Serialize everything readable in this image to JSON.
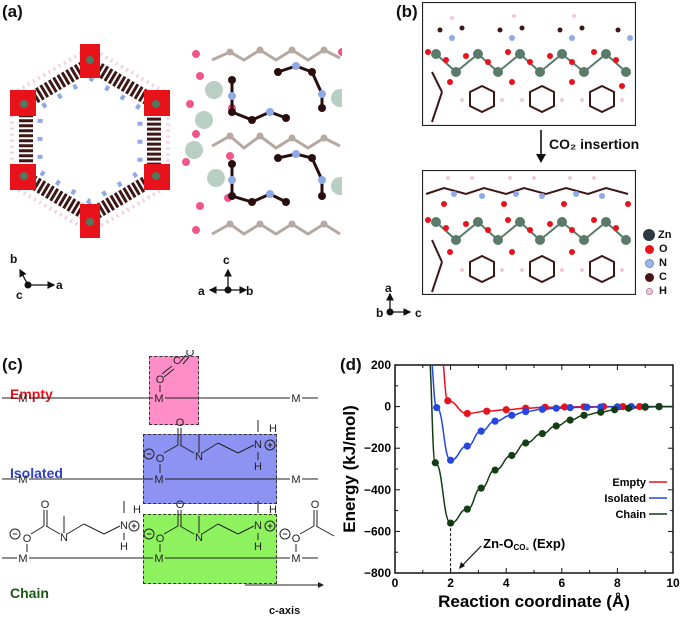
{
  "panels": {
    "a": {
      "label": "(a)",
      "left_axes": {
        "b": "b",
        "c": "c",
        "a": "a"
      },
      "right_axes": {
        "c": "c",
        "a": "a",
        "b": "b"
      }
    },
    "b": {
      "label": "(b)",
      "arrow_label": "CO₂ insertion",
      "axes": {
        "a": "a",
        "b": "b",
        "c": "c"
      },
      "legend": [
        {
          "label": "Zn",
          "color": "#2b3a3f"
        },
        {
          "label": "O",
          "color": "#e8121b"
        },
        {
          "label": "N",
          "color": "#9fb7e6"
        },
        {
          "label": "C",
          "color": "#4a1414"
        },
        {
          "label": "H",
          "color": "#f0c8dc"
        }
      ]
    },
    "c": {
      "label": "(c)",
      "rows": [
        {
          "name": "Empty",
          "color": "#e8121b",
          "box_color": "#ff8ec8"
        },
        {
          "name": "Isolated",
          "color": "#2f3fd0",
          "box_color": "#8c93f2"
        },
        {
          "name": "Chain",
          "color": "#1a5a12",
          "box_color": "#8ef25e"
        }
      ],
      "metal": "M",
      "atoms": {
        "O": "O",
        "C": "C",
        "N": "N",
        "H": "H"
      },
      "charge_minus": "−",
      "charge_plus": "+",
      "axis_label": "c-axis"
    },
    "d": {
      "label": "(d)",
      "annotation_main": "Zn-O",
      "annotation_sub": "CO₂",
      "annotation_tail": " (Exp)"
    }
  },
  "chart_data": {
    "type": "line",
    "title": "",
    "xlabel": "Reaction coordinate (Å)",
    "ylabel": "Energy (kJ/mol)",
    "xlim": [
      0,
      10
    ],
    "ylim": [
      -800,
      200
    ],
    "xticks": [
      0,
      2,
      4,
      6,
      8,
      10
    ],
    "yticks": [
      -800,
      -600,
      -400,
      -200,
      0,
      200
    ],
    "grid": false,
    "legend_position": "inside right",
    "series": [
      {
        "name": "Empty",
        "color": "#e8121b",
        "x": [
          1.9,
          2.6,
          3.3,
          4.0,
          4.7,
          5.4,
          6.1,
          6.8,
          7.5,
          8.2,
          8.8,
          9.5
        ],
        "y": [
          28,
          -33,
          -22,
          -15,
          -8,
          -3,
          -2,
          -1,
          0,
          0,
          0,
          0
        ]
      },
      {
        "name": "Isolated",
        "color": "#2546e0",
        "x": [
          1.5,
          2.0,
          2.6,
          3.1,
          3.6,
          4.2,
          4.7,
          5.3,
          5.8,
          6.3,
          6.9,
          7.4,
          8.0,
          8.5,
          9.0,
          9.5
        ],
        "y": [
          -5,
          -258,
          -190,
          -118,
          -70,
          -42,
          -24,
          -13,
          -8,
          -5,
          -3,
          -2,
          -1,
          0,
          0,
          0
        ]
      },
      {
        "name": "Chain",
        "color": "#143d14",
        "x": [
          1.45,
          2.0,
          2.6,
          3.1,
          3.6,
          4.2,
          4.7,
          5.3,
          5.8,
          6.3,
          6.8,
          7.4,
          7.9,
          8.4,
          9.0,
          9.5
        ],
        "y": [
          -270,
          -560,
          -493,
          -392,
          -305,
          -235,
          -175,
          -130,
          -93,
          -65,
          -42,
          -27,
          -15,
          -8,
          -3,
          0
        ]
      }
    ],
    "annotation": {
      "text": "Zn-O_CO2 (Exp)",
      "x": 2.0
    }
  }
}
